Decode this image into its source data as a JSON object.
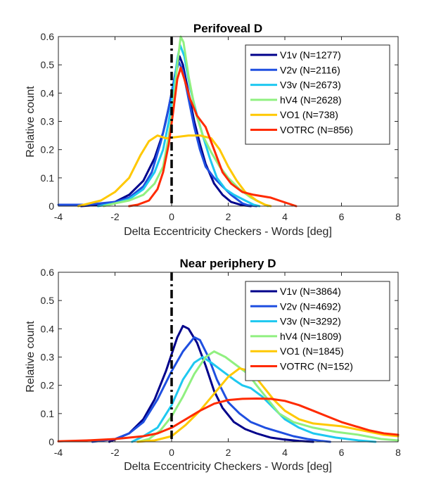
{
  "chart_data": [
    {
      "type": "line",
      "title": "Perifoveal D",
      "xlabel": "Delta Eccentricity Checkers - Words [deg]",
      "ylabel": "Relative count",
      "xlim": [
        -4,
        8
      ],
      "ylim": [
        0,
        0.6
      ],
      "xticks": [
        "-4",
        "-2",
        "0",
        "2",
        "4",
        "6",
        "8"
      ],
      "yticks": [
        "0",
        "0.1",
        "0.2",
        "0.3",
        "0.4",
        "0.5",
        "0.6"
      ],
      "grid": false,
      "legend": "top-right",
      "reference_line": {
        "x": 0,
        "style": "dash-dot",
        "color": "#000000"
      },
      "series": [
        {
          "name": "V1v (N=1277)",
          "color": "#00008B",
          "points": [
            [
              -3.2,
              0
            ],
            [
              -2.5,
              0.005
            ],
            [
              -2,
              0.015
            ],
            [
              -1.5,
              0.04
            ],
            [
              -1,
              0.09
            ],
            [
              -0.6,
              0.17
            ],
            [
              -0.3,
              0.26
            ],
            [
              -0.1,
              0.35
            ],
            [
              0,
              0.4
            ],
            [
              0.15,
              0.48
            ],
            [
              0.28,
              0.53
            ],
            [
              0.4,
              0.5
            ],
            [
              0.6,
              0.4
            ],
            [
              0.8,
              0.3
            ],
            [
              1.0,
              0.22
            ],
            [
              1.2,
              0.15
            ],
            [
              1.5,
              0.08
            ],
            [
              1.8,
              0.04
            ],
            [
              2.1,
              0.015
            ],
            [
              2.5,
              0.003
            ],
            [
              2.8,
              0
            ]
          ]
        },
        {
          "name": "V2v (N=2116)",
          "color": "#1F4FE0",
          "points": [
            [
              -4,
              0.005
            ],
            [
              -3,
              0.005
            ],
            [
              -2,
              0.015
            ],
            [
              -1.5,
              0.03
            ],
            [
              -1,
              0.07
            ],
            [
              -0.7,
              0.12
            ],
            [
              -0.4,
              0.22
            ],
            [
              -0.2,
              0.3
            ],
            [
              0,
              0.4
            ],
            [
              0.1,
              0.45
            ],
            [
              0.25,
              0.51
            ],
            [
              0.4,
              0.48
            ],
            [
              0.6,
              0.38
            ],
            [
              0.8,
              0.28
            ],
            [
              1.0,
              0.2
            ],
            [
              1.2,
              0.14
            ],
            [
              1.5,
              0.1
            ],
            [
              1.8,
              0.07
            ],
            [
              2.1,
              0.04
            ],
            [
              2.5,
              0.01
            ],
            [
              2.7,
              0.003
            ],
            [
              3.0,
              0
            ]
          ]
        },
        {
          "name": "V3v (N=2673)",
          "color": "#1EC8F0",
          "points": [
            [
              -2.6,
              0
            ],
            [
              -2,
              0.01
            ],
            [
              -1.5,
              0.025
            ],
            [
              -1,
              0.06
            ],
            [
              -0.6,
              0.12
            ],
            [
              -0.3,
              0.2
            ],
            [
              -0.1,
              0.3
            ],
            [
              0.05,
              0.4
            ],
            [
              0.2,
              0.52
            ],
            [
              0.3,
              0.57
            ],
            [
              0.45,
              0.53
            ],
            [
              0.65,
              0.42
            ],
            [
              0.9,
              0.32
            ],
            [
              1.1,
              0.25
            ],
            [
              1.35,
              0.17
            ],
            [
              1.6,
              0.1
            ],
            [
              1.9,
              0.06
            ],
            [
              2.2,
              0.04
            ],
            [
              2.6,
              0.02
            ],
            [
              2.9,
              0.005
            ],
            [
              3.1,
              0
            ]
          ]
        },
        {
          "name": "hV4 (N=2628)",
          "color": "#90F080",
          "points": [
            [
              -2.4,
              0
            ],
            [
              -2,
              0.01
            ],
            [
              -1.5,
              0.02
            ],
            [
              -1,
              0.04
            ],
            [
              -0.6,
              0.08
            ],
            [
              -0.3,
              0.14
            ],
            [
              -0.1,
              0.25
            ],
            [
              0.05,
              0.35
            ],
            [
              0.2,
              0.5
            ],
            [
              0.32,
              0.6
            ],
            [
              0.42,
              0.58
            ],
            [
              0.6,
              0.46
            ],
            [
              0.85,
              0.33
            ],
            [
              1.1,
              0.25
            ],
            [
              1.4,
              0.19
            ],
            [
              1.7,
              0.14
            ],
            [
              2.0,
              0.1
            ],
            [
              2.4,
              0.06
            ],
            [
              2.8,
              0.03
            ],
            [
              3.2,
              0.01
            ],
            [
              3.4,
              0
            ]
          ]
        },
        {
          "name": "VO1 (N=738)",
          "color": "#FFC800",
          "points": [
            [
              -3.3,
              0
            ],
            [
              -2.5,
              0.02
            ],
            [
              -2,
              0.05
            ],
            [
              -1.5,
              0.1
            ],
            [
              -1.1,
              0.18
            ],
            [
              -0.8,
              0.23
            ],
            [
              -0.5,
              0.25
            ],
            [
              -0.2,
              0.24
            ],
            [
              0.2,
              0.245
            ],
            [
              0.6,
              0.25
            ],
            [
              1.0,
              0.25
            ],
            [
              1.4,
              0.24
            ],
            [
              1.7,
              0.2
            ],
            [
              2.0,
              0.14
            ],
            [
              2.3,
              0.09
            ],
            [
              2.6,
              0.05
            ],
            [
              3.0,
              0.02
            ],
            [
              3.3,
              0.005
            ],
            [
              3.5,
              0
            ]
          ]
        },
        {
          "name": "VOTRC (N=856)",
          "color": "#FF2A00",
          "points": [
            [
              -1.5,
              0
            ],
            [
              -1.2,
              0.005
            ],
            [
              -0.8,
              0.02
            ],
            [
              -0.5,
              0.06
            ],
            [
              -0.3,
              0.12
            ],
            [
              -0.1,
              0.22
            ],
            [
              0.05,
              0.33
            ],
            [
              0.2,
              0.45
            ],
            [
              0.32,
              0.49
            ],
            [
              0.45,
              0.45
            ],
            [
              0.65,
              0.38
            ],
            [
              0.9,
              0.32
            ],
            [
              1.2,
              0.28
            ],
            [
              1.5,
              0.2
            ],
            [
              1.8,
              0.12
            ],
            [
              2.1,
              0.08
            ],
            [
              2.5,
              0.05
            ],
            [
              2.9,
              0.04
            ],
            [
              3.2,
              0.035
            ],
            [
              3.5,
              0.03
            ],
            [
              3.8,
              0.02
            ],
            [
              4.1,
              0.01
            ],
            [
              4.4,
              0
            ]
          ]
        }
      ]
    },
    {
      "type": "line",
      "title": "Near periphery D",
      "xlabel": "Delta Eccentricity Checkers - Words [deg]",
      "ylabel": "Relative count",
      "xlim": [
        -4,
        8
      ],
      "ylim": [
        0,
        0.6
      ],
      "xticks": [
        "-4",
        "-2",
        "0",
        "2",
        "4",
        "6",
        "8"
      ],
      "yticks": [
        "0",
        "0.1",
        "0.2",
        "0.3",
        "0.4",
        "0.5",
        "0.6"
      ],
      "grid": false,
      "legend": "top-right",
      "reference_line": {
        "x": 0,
        "style": "dash-dot",
        "color": "#000000"
      },
      "series": [
        {
          "name": "V1v (N=3864)",
          "color": "#00008B",
          "points": [
            [
              -2.2,
              0
            ],
            [
              -1.5,
              0.03
            ],
            [
              -1,
              0.08
            ],
            [
              -0.6,
              0.15
            ],
            [
              -0.2,
              0.25
            ],
            [
              0,
              0.31
            ],
            [
              0.2,
              0.37
            ],
            [
              0.4,
              0.41
            ],
            [
              0.6,
              0.4
            ],
            [
              0.9,
              0.35
            ],
            [
              1.2,
              0.27
            ],
            [
              1.5,
              0.18
            ],
            [
              1.8,
              0.12
            ],
            [
              2.2,
              0.07
            ],
            [
              2.6,
              0.045
            ],
            [
              3.0,
              0.03
            ],
            [
              3.5,
              0.015
            ],
            [
              4.0,
              0.008
            ],
            [
              4.5,
              0.003
            ],
            [
              5,
              0
            ]
          ]
        },
        {
          "name": "V2v (N=4692)",
          "color": "#1F4FE0",
          "points": [
            [
              -2.8,
              0
            ],
            [
              -2,
              0.01
            ],
            [
              -1.5,
              0.03
            ],
            [
              -1,
              0.07
            ],
            [
              -0.5,
              0.15
            ],
            [
              0,
              0.25
            ],
            [
              0.4,
              0.32
            ],
            [
              0.8,
              0.37
            ],
            [
              1.0,
              0.36
            ],
            [
              1.3,
              0.3
            ],
            [
              1.6,
              0.22
            ],
            [
              2.0,
              0.14
            ],
            [
              2.4,
              0.1
            ],
            [
              2.8,
              0.07
            ],
            [
              3.3,
              0.05
            ],
            [
              3.8,
              0.035
            ],
            [
              4.3,
              0.02
            ],
            [
              4.8,
              0.01
            ],
            [
              5.3,
              0.003
            ],
            [
              5.6,
              0
            ]
          ]
        },
        {
          "name": "V3v (N=3292)",
          "color": "#1EC8F0",
          "points": [
            [
              -1.4,
              0
            ],
            [
              -1,
              0.02
            ],
            [
              -0.5,
              0.05
            ],
            [
              0,
              0.13
            ],
            [
              0.4,
              0.22
            ],
            [
              0.8,
              0.28
            ],
            [
              1.1,
              0.3
            ],
            [
              1.4,
              0.28
            ],
            [
              1.8,
              0.25
            ],
            [
              2.2,
              0.22
            ],
            [
              2.5,
              0.2
            ],
            [
              2.8,
              0.19
            ],
            [
              3.2,
              0.16
            ],
            [
              3.6,
              0.12
            ],
            [
              4.0,
              0.08
            ],
            [
              4.5,
              0.05
            ],
            [
              5.0,
              0.03
            ],
            [
              5.8,
              0.015
            ],
            [
              6.6,
              0.005
            ],
            [
              7.2,
              0
            ]
          ]
        },
        {
          "name": "hV4 (N=1809)",
          "color": "#90F080",
          "points": [
            [
              -1.2,
              0
            ],
            [
              -0.8,
              0.01
            ],
            [
              -0.4,
              0.04
            ],
            [
              0,
              0.09
            ],
            [
              0.4,
              0.16
            ],
            [
              0.8,
              0.24
            ],
            [
              1.2,
              0.3
            ],
            [
              1.5,
              0.32
            ],
            [
              1.9,
              0.3
            ],
            [
              2.3,
              0.27
            ],
            [
              2.7,
              0.24
            ],
            [
              3.0,
              0.2
            ],
            [
              3.4,
              0.15
            ],
            [
              3.8,
              0.1
            ],
            [
              4.3,
              0.07
            ],
            [
              5.0,
              0.05
            ],
            [
              5.8,
              0.035
            ],
            [
              6.6,
              0.025
            ],
            [
              7.4,
              0.01
            ],
            [
              8,
              0.005
            ]
          ]
        },
        {
          "name": "VO1 (N=1845)",
          "color": "#FFC800",
          "points": [
            [
              -1.2,
              0
            ],
            [
              -0.6,
              0.005
            ],
            [
              0,
              0.02
            ],
            [
              0.5,
              0.06
            ],
            [
              1.0,
              0.11
            ],
            [
              1.5,
              0.17
            ],
            [
              2.0,
              0.23
            ],
            [
              2.4,
              0.26
            ],
            [
              2.8,
              0.25
            ],
            [
              3.2,
              0.2
            ],
            [
              3.6,
              0.15
            ],
            [
              4.0,
              0.11
            ],
            [
              4.5,
              0.08
            ],
            [
              5.0,
              0.065
            ],
            [
              5.5,
              0.06
            ],
            [
              6.0,
              0.055
            ],
            [
              6.5,
              0.045
            ],
            [
              7.0,
              0.035
            ],
            [
              7.5,
              0.025
            ],
            [
              8,
              0.02
            ]
          ]
        },
        {
          "name": "VOTRC (N=152)",
          "color": "#FF2A00",
          "points": [
            [
              -4,
              0.002
            ],
            [
              -3,
              0.005
            ],
            [
              -2,
              0.01
            ],
            [
              -1,
              0.02
            ],
            [
              -0.5,
              0.03
            ],
            [
              0,
              0.05
            ],
            [
              0.5,
              0.08
            ],
            [
              1.0,
              0.11
            ],
            [
              1.5,
              0.135
            ],
            [
              2.0,
              0.148
            ],
            [
              2.5,
              0.152
            ],
            [
              3.0,
              0.153
            ],
            [
              3.5,
              0.152
            ],
            [
              4.0,
              0.145
            ],
            [
              4.5,
              0.13
            ],
            [
              5.0,
              0.11
            ],
            [
              5.5,
              0.09
            ],
            [
              6.0,
              0.07
            ],
            [
              6.5,
              0.055
            ],
            [
              7.0,
              0.04
            ],
            [
              7.5,
              0.03
            ],
            [
              8,
              0.025
            ]
          ]
        }
      ]
    }
  ]
}
